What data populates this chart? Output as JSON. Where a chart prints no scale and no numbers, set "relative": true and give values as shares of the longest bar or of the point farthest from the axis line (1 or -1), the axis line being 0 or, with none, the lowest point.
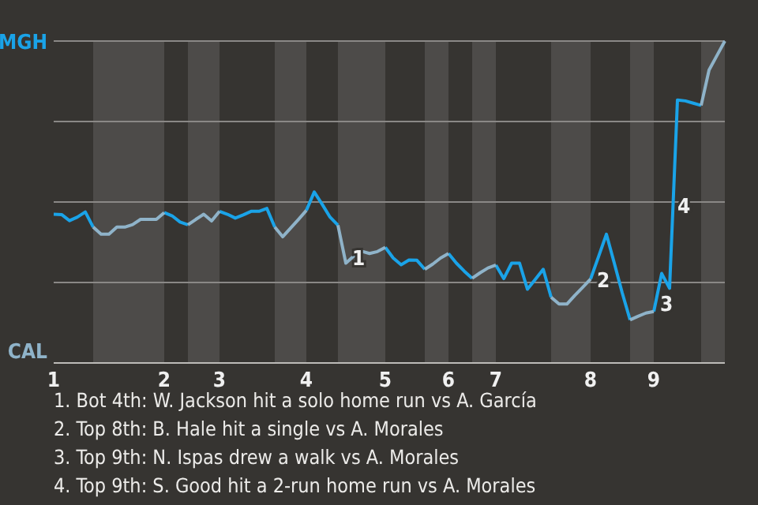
{
  "chart_data": {
    "type": "line",
    "relative": true,
    "categories": [
      "1",
      null,
      null,
      null,
      null,
      null,
      null,
      null,
      null,
      null,
      null,
      null,
      null,
      null,
      "2",
      null,
      null,
      null,
      null,
      null,
      null,
      "3",
      null,
      null,
      null,
      null,
      null,
      null,
      null,
      null,
      null,
      null,
      "4",
      null,
      null,
      null,
      null,
      null,
      null,
      null,
      null,
      null,
      "5",
      null,
      null,
      null,
      null,
      null,
      null,
      null,
      "6",
      null,
      null,
      null,
      null,
      null,
      "7",
      null,
      null,
      null,
      null,
      null,
      null,
      null,
      null,
      null,
      null,
      null,
      "8",
      null,
      null,
      null,
      null,
      null,
      null,
      null,
      "9",
      null,
      null,
      null,
      null,
      null,
      null,
      null,
      null,
      null
    ],
    "marker": "none",
    "line_style": "solid",
    "grid": "y",
    "series": [
      {
        "color": "#1aa3e8",
        "values": [
          0.462,
          0.461,
          0.442,
          0.453,
          0.469,
          0.422,
          null,
          null,
          null,
          null,
          null,
          null,
          null,
          null,
          0.467,
          0.457,
          0.438,
          0.429,
          null,
          null,
          null,
          0.471,
          0.462,
          0.45,
          0.46,
          0.471,
          0.471,
          0.48,
          0.422,
          null,
          null,
          null,
          0.474,
          0.531,
          0.493,
          0.453,
          0.428,
          null,
          null,
          null,
          null,
          null,
          0.359,
          0.326,
          0.305,
          0.32,
          0.319,
          0.291,
          null,
          null,
          0.34,
          0.31,
          0.285,
          0.263,
          null,
          null,
          0.304,
          0.262,
          0.31,
          0.31,
          0.229,
          0.26,
          0.291,
          0.204,
          null,
          null,
          null,
          null,
          0.261,
          0.33,
          0.4,
          0.31,
          0.218,
          0.134,
          null,
          null,
          0.16,
          0.278,
          0.232,
          0.817,
          0.814,
          0.807,
          0.8,
          null,
          null,
          null
        ]
      },
      {
        "color": "#8fb3c9",
        "values": [
          null,
          null,
          null,
          null,
          null,
          0.422,
          0.4,
          0.4,
          0.422,
          0.422,
          0.43,
          0.446,
          0.446,
          0.446,
          0.467,
          null,
          null,
          0.429,
          0.446,
          0.462,
          0.441,
          0.471,
          null,
          null,
          null,
          null,
          null,
          null,
          0.422,
          0.392,
          0.419,
          0.446,
          0.474,
          null,
          null,
          null,
          0.428,
          0.31,
          0.332,
          0.347,
          0.34,
          0.346,
          0.359,
          null,
          null,
          null,
          null,
          0.291,
          0.307,
          0.326,
          0.34,
          null,
          null,
          0.263,
          0.28,
          0.295,
          0.304,
          null,
          null,
          null,
          null,
          null,
          null,
          0.204,
          0.183,
          0.183,
          0.21,
          0.235,
          0.261,
          null,
          null,
          null,
          null,
          0.134,
          0.145,
          0.155,
          0.16,
          null,
          null,
          null,
          null,
          null,
          0.8,
          0.91,
          0.955,
          1.0
        ]
      }
    ],
    "annotations": [
      "MGH",
      "CAL",
      "1",
      "2",
      "3",
      "4",
      "1. Bot 4th: W. Jackson hit a solo home run vs A. García",
      "2. Top 8th: B. Hale hit a single vs A. Morales",
      "3. Top 9th: N. Ispas drew a walk vs A. Morales",
      "4. Top 9th: S. Good hit a 2-run home run vs A. Morales"
    ]
  }
}
